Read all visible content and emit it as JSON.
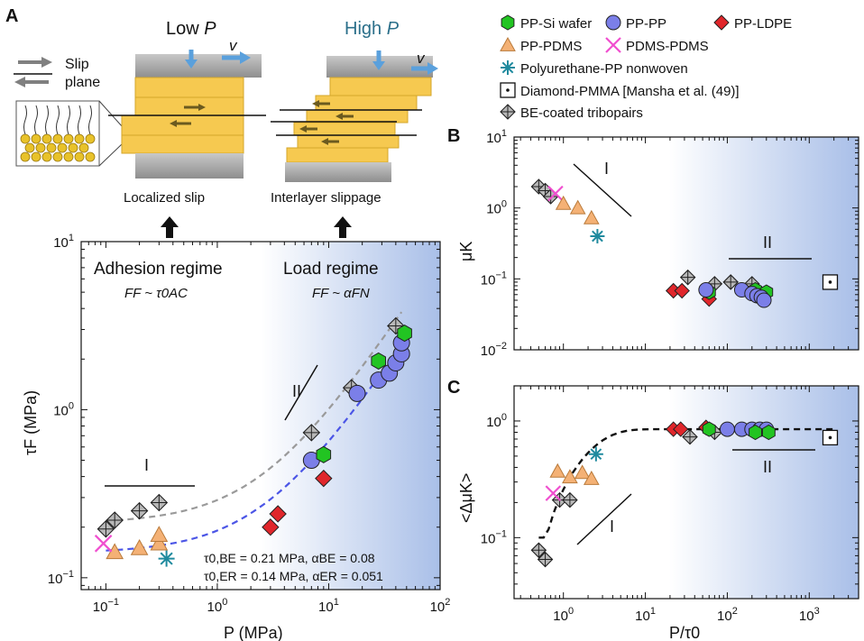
{
  "panel_labels": {
    "a": "A",
    "b": "B",
    "c": "C"
  },
  "schematic": {
    "slip_plane_label_1": "Slip",
    "slip_plane_label_2": "plane",
    "low_p_text": "Low",
    "high_p_text": "High",
    "p_symbol": "P",
    "v_symbol": "v",
    "localized_slip_label": "Localized slip",
    "interlayer_label": "Interlayer slippage",
    "high_color": "#2b6f8a"
  },
  "legend": [
    {
      "label": "PP-Si wafer",
      "marker": "hexagon",
      "color": "#22c422"
    },
    {
      "label": "PP-PP",
      "marker": "circle",
      "color": "#7b7fe8"
    },
    {
      "label": "PP-LDPE",
      "marker": "diamond",
      "color": "#e0262b"
    },
    {
      "label": "PP-PDMS",
      "marker": "triangle",
      "color": "#f4b175"
    },
    {
      "label": "PDMS-PDMS",
      "marker": "x",
      "color": "#f04ecf"
    },
    {
      "label": "Polyurethane-PP nonwoven",
      "marker": "asterisk",
      "color": "#1f8a9e"
    },
    {
      "label": "Diamond-PMMA [Mansha et al. (49)]",
      "marker": "dotted-square",
      "color": "#000000"
    },
    {
      "label": "BE-coated tribopairs",
      "marker": "crossed-diamond",
      "color": "#b8b8b8"
    }
  ],
  "chart_data": [
    {
      "id": "A",
      "type": "scatter",
      "xlabel": "P (MPa)",
      "ylabel": "τF (MPa)",
      "xscale": "log",
      "yscale": "log",
      "xlim": [
        0.06,
        100
      ],
      "ylim": [
        0.085,
        10
      ],
      "xticks": [
        "10−1",
        "100",
        "101",
        "102"
      ],
      "yticks": [
        "10−1",
        "100",
        "101"
      ],
      "background_gradient": [
        "#ffffff",
        "#a9bfe8"
      ],
      "annotations": {
        "adhesion_title": "Adhesion regime",
        "adhesion_formula": "FF ~ τ0AC",
        "load_title": "Load regime",
        "load_formula": "FF ~ αFN",
        "regime_1": "I",
        "regime_2": "II",
        "fit_be": "τ0,BE = 0.21 MPa, αBE = 0.08",
        "fit_er": "τ0,ER = 0.14 MPa, αER = 0.051"
      },
      "fits": [
        {
          "name": "BE",
          "tau0": 0.21,
          "alpha": 0.08,
          "color": "#9a9a9a"
        },
        {
          "name": "ER",
          "tau0": 0.14,
          "alpha": 0.051,
          "color": "#4b55e6"
        }
      ],
      "series": [
        {
          "marker": "crossed-diamond",
          "color": "#b8b8b8",
          "points": [
            [
              0.1,
              0.195
            ],
            [
              0.12,
              0.22
            ],
            [
              0.2,
              0.25
            ],
            [
              0.3,
              0.28
            ],
            [
              7,
              0.73
            ],
            [
              16,
              1.35
            ],
            [
              40,
              3.15
            ]
          ]
        },
        {
          "marker": "triangle",
          "color": "#f4b175",
          "points": [
            [
              0.12,
              0.142
            ],
            [
              0.2,
              0.15
            ],
            [
              0.3,
              0.16
            ],
            [
              0.3,
              0.18
            ]
          ]
        },
        {
          "marker": "x",
          "color": "#f04ecf",
          "points": [
            [
              0.095,
              0.16
            ]
          ]
        },
        {
          "marker": "asterisk",
          "color": "#1f8a9e",
          "points": [
            [
              0.35,
              0.13
            ]
          ]
        },
        {
          "marker": "diamond",
          "color": "#e0262b",
          "points": [
            [
              3,
              0.2
            ],
            [
              3.5,
              0.24
            ],
            [
              9,
              0.39
            ]
          ]
        },
        {
          "marker": "circle",
          "color": "#7b7fe8",
          "points": [
            [
              7,
              0.5
            ],
            [
              18,
              1.25
            ],
            [
              28,
              1.5
            ],
            [
              35,
              1.65
            ],
            [
              40,
              1.9
            ],
            [
              45,
              2.15
            ],
            [
              45,
              2.5
            ]
          ]
        },
        {
          "marker": "hexagon",
          "color": "#22c422",
          "points": [
            [
              9,
              0.54
            ],
            [
              28,
              1.95
            ],
            [
              48,
              2.85
            ]
          ]
        }
      ]
    },
    {
      "id": "B",
      "type": "scatter",
      "ylabel": "μK",
      "xscale": "log",
      "yscale": "log",
      "xlim": [
        0.25,
        4000
      ],
      "ylim": [
        0.01,
        10
      ],
      "yticks": [
        "10−2",
        "10−1",
        "100",
        "101"
      ],
      "annotations": {
        "regime_1": "I",
        "regime_2": "II"
      },
      "series": [
        {
          "marker": "crossed-diamond",
          "color": "#b8b8b8",
          "points": [
            [
              0.5,
              2.0
            ],
            [
              0.6,
              1.75
            ],
            [
              0.7,
              1.45
            ],
            [
              33,
              0.105
            ],
            [
              70,
              0.085
            ],
            [
              110,
              0.09
            ],
            [
              200,
              0.085
            ]
          ]
        },
        {
          "marker": "x",
          "color": "#f04ecf",
          "points": [
            [
              0.8,
              1.6
            ]
          ]
        },
        {
          "marker": "triangle",
          "color": "#f4b175",
          "points": [
            [
              1.0,
              1.15
            ],
            [
              1.5,
              1.0
            ],
            [
              2.2,
              0.72
            ]
          ]
        },
        {
          "marker": "asterisk",
          "color": "#1f8a9e",
          "points": [
            [
              2.6,
              0.4
            ]
          ]
        },
        {
          "marker": "diamond",
          "color": "#e0262b",
          "points": [
            [
              22,
              0.068
            ],
            [
              28,
              0.068
            ],
            [
              60,
              0.052
            ]
          ]
        },
        {
          "marker": "hexagon",
          "color": "#22c422",
          "points": [
            [
              60,
              0.065
            ],
            [
              220,
              0.07
            ],
            [
              300,
              0.065
            ]
          ]
        },
        {
          "marker": "circle",
          "color": "#7b7fe8",
          "points": [
            [
              55,
              0.07
            ],
            [
              150,
              0.07
            ],
            [
              200,
              0.062
            ],
            [
              230,
              0.058
            ],
            [
              260,
              0.055
            ],
            [
              280,
              0.05
            ]
          ]
        },
        {
          "marker": "dotted-square",
          "color": "#000000",
          "points": [
            [
              1800,
              0.09
            ]
          ]
        }
      ]
    },
    {
      "id": "C",
      "type": "scatter",
      "xlabel": "P/τ0",
      "ylabel": "<ΔμK>",
      "xscale": "log",
      "yscale": "log",
      "xlim": [
        0.25,
        4000
      ],
      "ylim": [
        0.03,
        2
      ],
      "xticks": [
        "100",
        "101",
        "102",
        "103"
      ],
      "yticks": [
        "10−1",
        "100"
      ],
      "annotations": {
        "regime_1": "I",
        "regime_2": "II"
      },
      "series": [
        {
          "marker": "crossed-diamond",
          "color": "#b8b8b8",
          "points": [
            [
              0.5,
              0.078
            ],
            [
              0.6,
              0.065
            ],
            [
              0.9,
              0.21
            ],
            [
              1.2,
              0.21
            ],
            [
              35,
              0.73
            ],
            [
              70,
              0.8
            ]
          ]
        },
        {
          "marker": "x",
          "color": "#f04ecf",
          "points": [
            [
              0.75,
              0.24
            ]
          ]
        },
        {
          "marker": "triangle",
          "color": "#f4b175",
          "points": [
            [
              0.85,
              0.37
            ],
            [
              1.2,
              0.33
            ],
            [
              1.7,
              0.36
            ],
            [
              2.2,
              0.32
            ]
          ]
        },
        {
          "marker": "asterisk",
          "color": "#1f8a9e",
          "points": [
            [
              2.5,
              0.52
            ]
          ]
        },
        {
          "marker": "diamond",
          "color": "#e0262b",
          "points": [
            [
              22,
              0.85
            ],
            [
              27,
              0.85
            ],
            [
              55,
              0.88
            ]
          ]
        },
        {
          "marker": "circle",
          "color": "#7b7fe8",
          "points": [
            [
              100,
              0.85
            ],
            [
              150,
              0.85
            ],
            [
              200,
              0.85
            ],
            [
              250,
              0.85
            ],
            [
              300,
              0.85
            ]
          ]
        },
        {
          "marker": "hexagon",
          "color": "#22c422",
          "points": [
            [
              60,
              0.85
            ],
            [
              220,
              0.8
            ],
            [
              320,
              0.8
            ]
          ]
        },
        {
          "marker": "dotted-square",
          "color": "#000000",
          "points": [
            [
              1800,
              0.72
            ]
          ]
        }
      ]
    }
  ]
}
